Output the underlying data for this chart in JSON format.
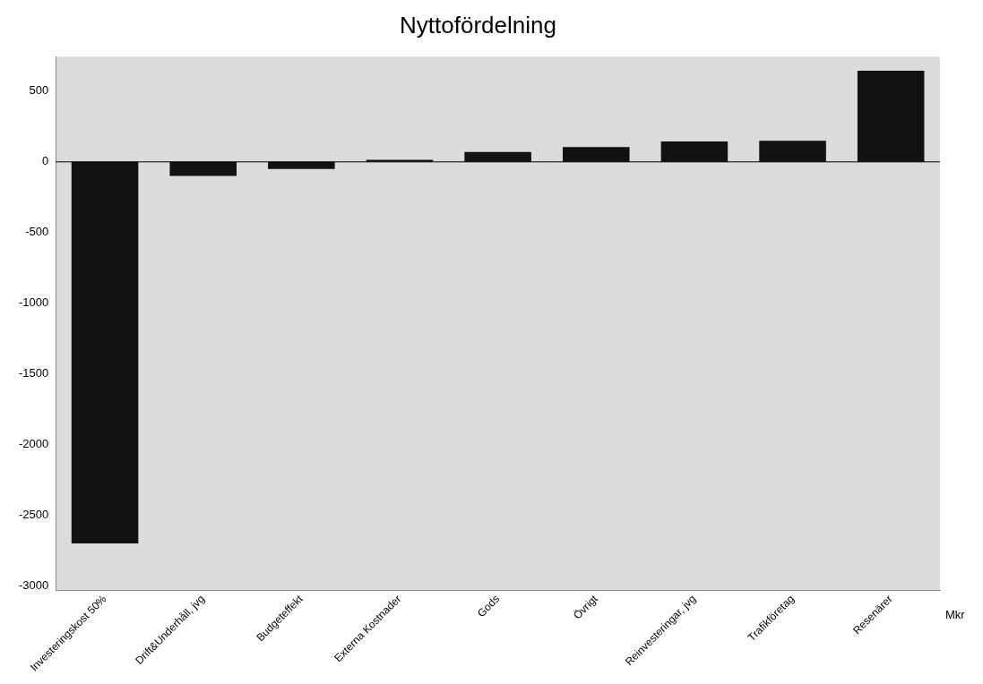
{
  "chart_data": {
    "type": "bar",
    "title": "Nyttofördelning",
    "categories": [
      "Investeringskost 50%",
      "Drift&Underhåll, jvg",
      "Budgeteffekt",
      "Externa Kostnader",
      "Gods",
      "Övrigt",
      "Reinvesteringar, jvg",
      "Trafikföretag",
      "Resenärer"
    ],
    "values": [
      -2700,
      -100,
      -50,
      15,
      70,
      105,
      145,
      150,
      645
    ],
    "color": "#111111",
    "ylim": [
      -3030,
      745
    ],
    "yticks": [
      -3000,
      -2500,
      -2000,
      -1500,
      -1000,
      -500,
      0,
      500
    ],
    "legend": false,
    "annotations": [
      "Mkr"
    ]
  }
}
